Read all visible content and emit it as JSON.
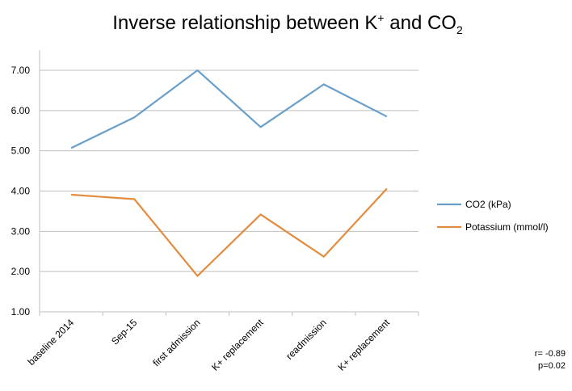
{
  "chart_data": {
    "type": "line",
    "title": {
      "main": "Inverse relationship between K",
      "sup": "+",
      "mid": " and CO",
      "sub": "2"
    },
    "categories": [
      "baseline 2014",
      "Sep-15",
      "first admission",
      "K+ replacement",
      "readmission",
      "K+ replacement"
    ],
    "series": [
      {
        "name": "CO2 (kPa)",
        "color": "#6a9fca",
        "values": [
          5.07,
          5.83,
          7.0,
          5.59,
          6.65,
          5.85
        ]
      },
      {
        "name": "Potassium (mmol/l)",
        "color": "#e38b3f",
        "values": [
          3.91,
          3.8,
          1.89,
          3.42,
          2.37,
          4.06
        ]
      }
    ],
    "ylim": [
      1.0,
      7.0
    ],
    "yticks": [
      "1.00",
      "2.00",
      "3.00",
      "4.00",
      "5.00",
      "6.00",
      "7.00"
    ],
    "grid": true,
    "legend_position": "right",
    "annotations": [
      "r= -0.89",
      "p=0.02"
    ]
  }
}
